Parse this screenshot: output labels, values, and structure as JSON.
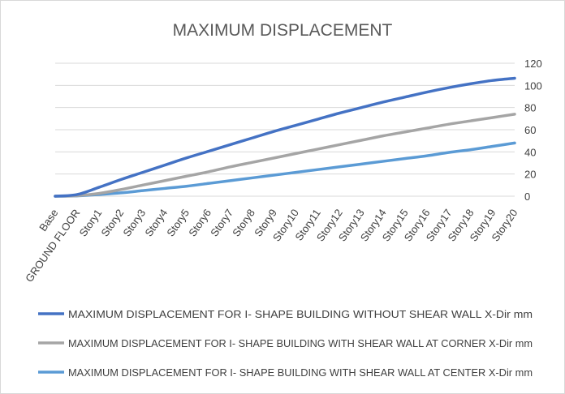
{
  "chart_data": {
    "type": "line",
    "title": "MAXIMUM DISPLACEMENT",
    "xlabel": "",
    "ylabel": "",
    "categories": [
      "Base",
      "GROUND FLOOR",
      "Story1",
      "Story2",
      "Story3",
      "Story4",
      "Story5",
      "Story6",
      "Story7",
      "Story8",
      "Story9",
      "Story10",
      "Story11",
      "Story12",
      "Story13",
      "Story14",
      "Story15",
      "Story16",
      "Story17",
      "Story18",
      "Story19",
      "Story20"
    ],
    "ylim": [
      0,
      120
    ],
    "yticks": [
      0,
      20,
      40,
      60,
      80,
      100,
      120
    ],
    "y_axis_side": "right",
    "grid": true,
    "legend_position": "bottom",
    "series": [
      {
        "name": "MAXIMUM DISPLACEMENT FOR I- SHAPE BUILDING WITHOUT SHEAR WALL X-Dir mm",
        "color": "#4472c4",
        "values": [
          0,
          1.5,
          8,
          15,
          21.5,
          28,
          34.5,
          40.5,
          46.5,
          52.5,
          58.5,
          64,
          69.5,
          75,
          80,
          85,
          89.5,
          94,
          98,
          101.5,
          104.5,
          106.5
        ]
      },
      {
        "name": "MAXIMUM DISPLACEMENT FOR I- SHAPE BUILDING WITH SHEAR WALL AT CORNER X-Dir mm",
        "color": "#a5a5a5",
        "values": [
          0,
          0.5,
          2.5,
          6,
          10,
          14,
          18,
          22,
          26.5,
          30.5,
          34.5,
          38.5,
          42.5,
          46.5,
          50.5,
          54.5,
          58,
          61.5,
          65,
          68,
          71,
          74
        ]
      },
      {
        "name": "MAXIMUM DISPLACEMENT FOR I- SHAPE BUILDING WITH SHEAR WALL AT CENTER X-Dir mm",
        "color": "#5b9bd5",
        "values": [
          0,
          0.3,
          1.5,
          3,
          5,
          7,
          9,
          11.5,
          14,
          16.5,
          19,
          21.5,
          24,
          26.5,
          29,
          31.5,
          34,
          36.5,
          39.5,
          42,
          45,
          48
        ]
      }
    ]
  },
  "colors": {
    "gridline": "#d9d9d9",
    "title": "#595959",
    "tick": "#404040",
    "frame": "#d9d9d9"
  }
}
